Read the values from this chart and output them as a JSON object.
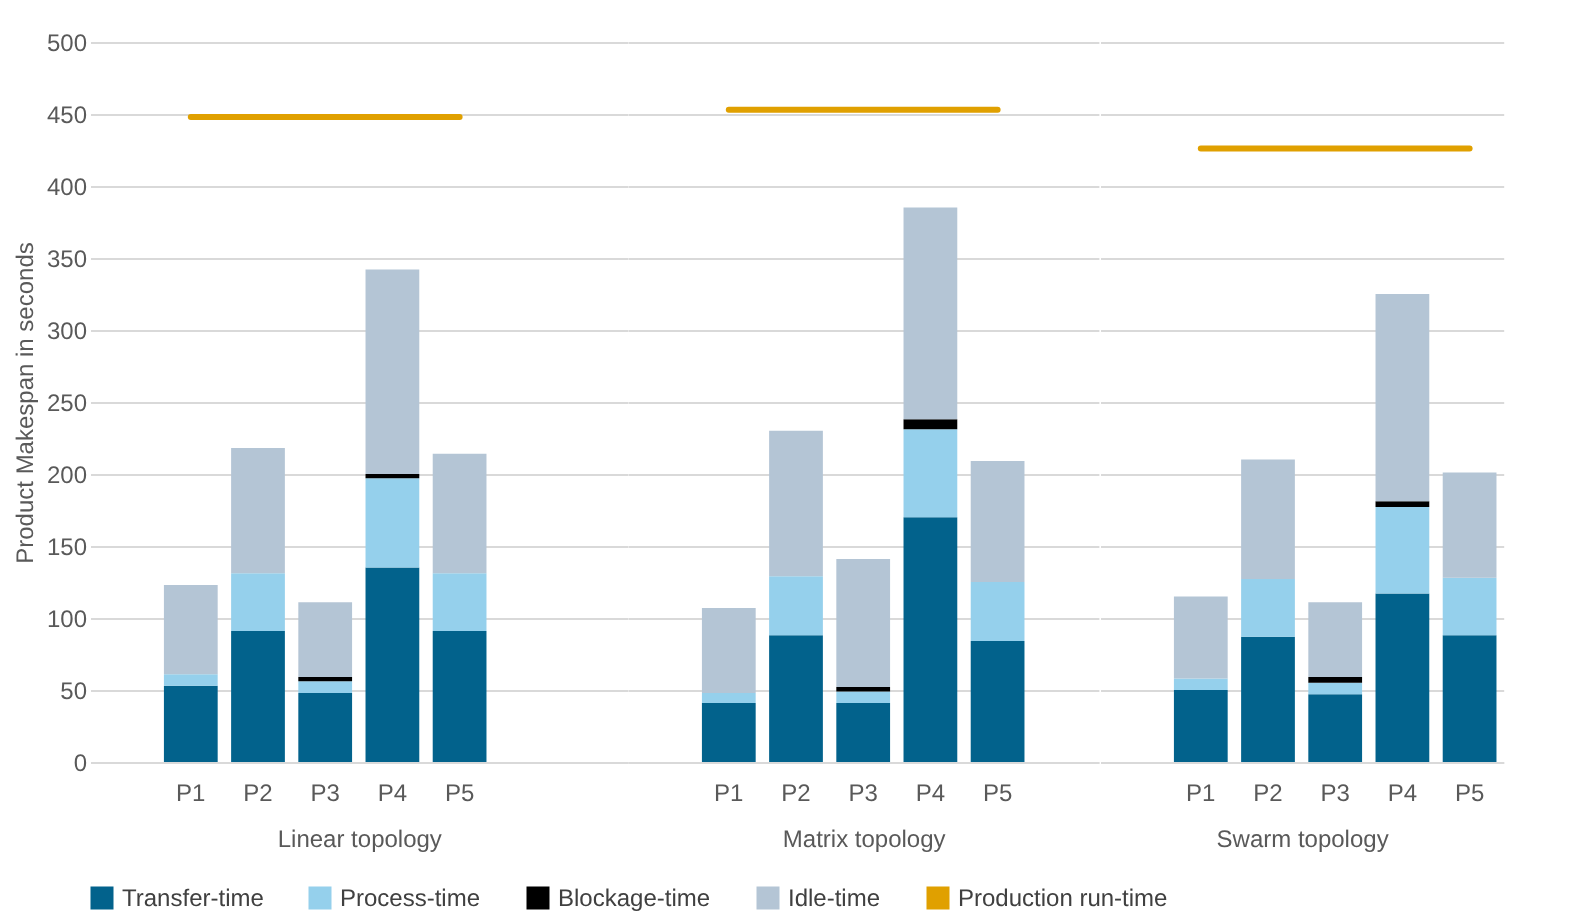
{
  "chart_data": [
    {
      "type": "bar",
      "stacked": true,
      "xlabel": "Linear topology",
      "ylabel": "Product Makespan in seconds",
      "categories": [
        null,
        "P1",
        "P2",
        "P3",
        "P4",
        "P5",
        null,
        null
      ],
      "ylim": [
        0,
        500
      ],
      "yticks": [
        0,
        50,
        100,
        150,
        200,
        250,
        300,
        350,
        400,
        450,
        500
      ],
      "grid": "y",
      "legend": "bottom",
      "series": [
        {
          "name": "Transfer-time",
          "color": "#02628c",
          "values": [
            null,
            53,
            91,
            48,
            135,
            91,
            null,
            null
          ]
        },
        {
          "name": "Process-time",
          "color": "#95d0ec",
          "values": [
            null,
            8,
            40,
            8,
            62,
            40,
            null,
            null
          ]
        },
        {
          "name": "Blockage-time",
          "color": "#000000",
          "values": [
            null,
            0,
            0,
            3,
            3,
            0,
            null,
            null
          ]
        },
        {
          "name": "Idle-time",
          "color": "#b4c5d5",
          "values": [
            null,
            62,
            87,
            52,
            142,
            83,
            null,
            null
          ]
        },
        {
          "name": "Production run-time",
          "type": "line",
          "color": "#e0a000",
          "values": [
            null,
            448,
            448,
            448,
            448,
            448,
            null,
            null
          ]
        }
      ]
    },
    {
      "type": "bar",
      "stacked": true,
      "xlabel": "Matrix  topology",
      "categories": [
        null,
        "P1",
        "P2",
        "P3",
        "P4",
        "P5",
        null
      ],
      "ylim": [
        0,
        500
      ],
      "yticks": [
        0,
        50,
        100,
        150,
        200,
        250,
        300,
        350,
        400,
        450,
        500
      ],
      "grid": "y",
      "tick_labels": "x",
      "series": [
        {
          "name": "Transfer-time",
          "color": "#02628c",
          "values": [
            null,
            41,
            88,
            41,
            170,
            84,
            null
          ]
        },
        {
          "name": "Process-time",
          "color": "#95d0ec",
          "values": [
            null,
            7,
            41,
            8,
            61,
            41,
            null
          ]
        },
        {
          "name": "Blockage-time",
          "color": "#000000",
          "values": [
            null,
            0,
            0,
            3,
            7,
            0,
            null
          ]
        },
        {
          "name": "Idle-time",
          "color": "#b4c5d5",
          "values": [
            null,
            59,
            101,
            89,
            147,
            84,
            null
          ]
        },
        {
          "name": "Production run-time",
          "type": "line",
          "color": "#e0a000",
          "values": [
            null,
            453,
            453,
            453,
            453,
            453,
            null
          ]
        }
      ]
    },
    {
      "type": "bar",
      "stacked": true,
      "xlabel": "Swarm topology",
      "categories": [
        null,
        "P1",
        "P2",
        "P3",
        "P4",
        "P5"
      ],
      "ylim": [
        0,
        500
      ],
      "yticks": [
        0,
        50,
        100,
        150,
        200,
        250,
        300,
        350,
        400,
        450,
        500
      ],
      "grid": "y",
      "tick_labels": "x",
      "series": [
        {
          "name": "Transfer-time",
          "color": "#02628c",
          "values": [
            null,
            50,
            87,
            47,
            117,
            88
          ]
        },
        {
          "name": "Process-time",
          "color": "#95d0ec",
          "values": [
            null,
            8,
            40,
            8,
            60,
            40
          ]
        },
        {
          "name": "Blockage-time",
          "color": "#000000",
          "values": [
            null,
            0,
            0,
            4,
            4,
            0
          ]
        },
        {
          "name": "Idle-time",
          "color": "#b4c5d5",
          "values": [
            null,
            57,
            83,
            52,
            144,
            73
          ]
        },
        {
          "name": "Production run-time",
          "type": "line",
          "color": "#e0a000",
          "values": [
            null,
            426,
            426,
            426,
            426,
            426
          ]
        }
      ]
    }
  ]
}
